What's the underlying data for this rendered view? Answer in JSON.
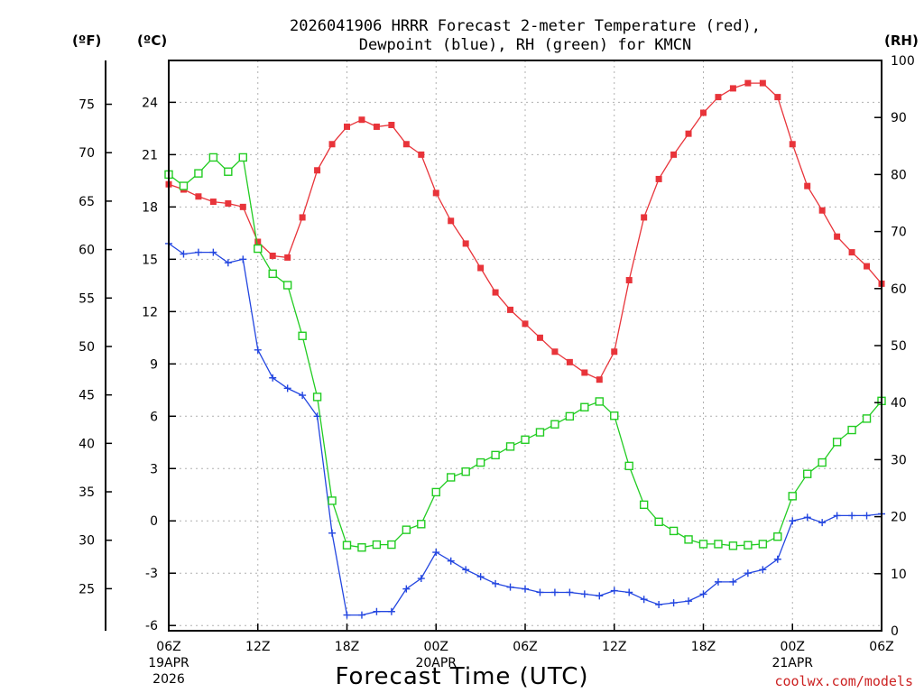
{
  "chart_data": {
    "type": "line",
    "title_line1": "2026041906 HRRR Forecast 2-meter Temperature (red),",
    "title_line2": "Dewpoint (blue), RH (green) for KMCN",
    "xlabel": "Forecast Time (UTC)",
    "credit": "coolwx.com/models",
    "units": {
      "fahrenheit": "(ºF)",
      "celsius": "(ºC)",
      "rh": "(RH)"
    },
    "x_range_hours": [
      0,
      48
    ],
    "y_celsius_range": [
      -6.3,
      26.4
    ],
    "y_rh_range": [
      0,
      100
    ],
    "x_ticks": [
      {
        "hour": 0,
        "label": "06Z",
        "sub1": "19APR",
        "sub2": "2026"
      },
      {
        "hour": 6,
        "label": "12Z",
        "sub1": "",
        "sub2": ""
      },
      {
        "hour": 12,
        "label": "18Z",
        "sub1": "",
        "sub2": ""
      },
      {
        "hour": 18,
        "label": "00Z",
        "sub1": "20APR",
        "sub2": ""
      },
      {
        "hour": 24,
        "label": "06Z",
        "sub1": "",
        "sub2": ""
      },
      {
        "hour": 30,
        "label": "12Z",
        "sub1": "",
        "sub2": ""
      },
      {
        "hour": 36,
        "label": "18Z",
        "sub1": "",
        "sub2": ""
      },
      {
        "hour": 42,
        "label": "00Z",
        "sub1": "21APR",
        "sub2": ""
      },
      {
        "hour": 48,
        "label": "06Z",
        "sub1": "",
        "sub2": ""
      }
    ],
    "celsius_ticks": [
      24,
      21,
      18,
      15,
      12,
      9,
      6,
      3,
      0,
      -3,
      -6
    ],
    "fahrenheit_ticks": [
      75,
      70,
      65,
      60,
      55,
      50,
      45,
      40,
      35,
      30,
      25
    ],
    "rh_ticks": [
      100,
      90,
      80,
      70,
      60,
      50,
      40,
      30,
      20,
      10,
      0
    ],
    "series": [
      {
        "name": "Temperature",
        "units": "C",
        "color": "#e8343a",
        "marker": "filled-square",
        "values": [
          19.3,
          19.0,
          18.6,
          18.3,
          18.2,
          18.0,
          16.0,
          15.2,
          15.1,
          17.4,
          20.1,
          21.6,
          22.6,
          23.0,
          22.6,
          22.7,
          21.6,
          21.0,
          18.8,
          17.2,
          15.9,
          14.5,
          13.1,
          12.1,
          11.3,
          10.5,
          9.7,
          9.1,
          8.5,
          8.1,
          9.7,
          13.8,
          17.4,
          19.6,
          21.0,
          22.2,
          23.4,
          24.3,
          24.8,
          25.1,
          25.1,
          24.3,
          21.6,
          19.2,
          17.8,
          16.3,
          15.4,
          14.6,
          13.6
        ]
      },
      {
        "name": "Dewpoint",
        "units": "C",
        "color": "#2346e0",
        "marker": "plus",
        "values": [
          15.9,
          15.3,
          15.4,
          15.4,
          14.8,
          15.0,
          9.8,
          8.2,
          7.6,
          7.2,
          6.0,
          -0.7,
          -5.4,
          -5.4,
          -5.2,
          -5.2,
          -3.9,
          -3.3,
          -1.8,
          -2.3,
          -2.8,
          -3.2,
          -3.6,
          -3.8,
          -3.9,
          -4.1,
          -4.1,
          -4.1,
          -4.2,
          -4.3,
          -4.0,
          -4.1,
          -4.5,
          -4.8,
          -4.7,
          -4.6,
          -4.2,
          -3.5,
          -3.5,
          -3.0,
          -2.8,
          -2.2,
          0.0,
          0.2,
          -0.1,
          0.3,
          0.3,
          0.3,
          0.4
        ]
      },
      {
        "name": "RH",
        "units": "%",
        "color": "#22cc22",
        "marker": "open-square",
        "values": [
          80.0,
          78.0,
          80.2,
          83.0,
          80.5,
          83.0,
          67.0,
          62.6,
          60.6,
          51.7,
          41.0,
          22.8,
          15.0,
          14.6,
          15.1,
          15.1,
          17.7,
          18.7,
          24.3,
          26.9,
          27.9,
          29.5,
          30.8,
          32.3,
          33.5,
          34.8,
          36.2,
          37.6,
          39.2,
          40.2,
          37.7,
          28.9,
          22.1,
          19.1,
          17.5,
          16.0,
          15.2,
          15.2,
          14.9,
          15.0,
          15.2,
          16.5,
          23.6,
          27.5,
          29.5,
          33.1,
          35.2,
          37.2,
          40.3
        ]
      }
    ]
  }
}
